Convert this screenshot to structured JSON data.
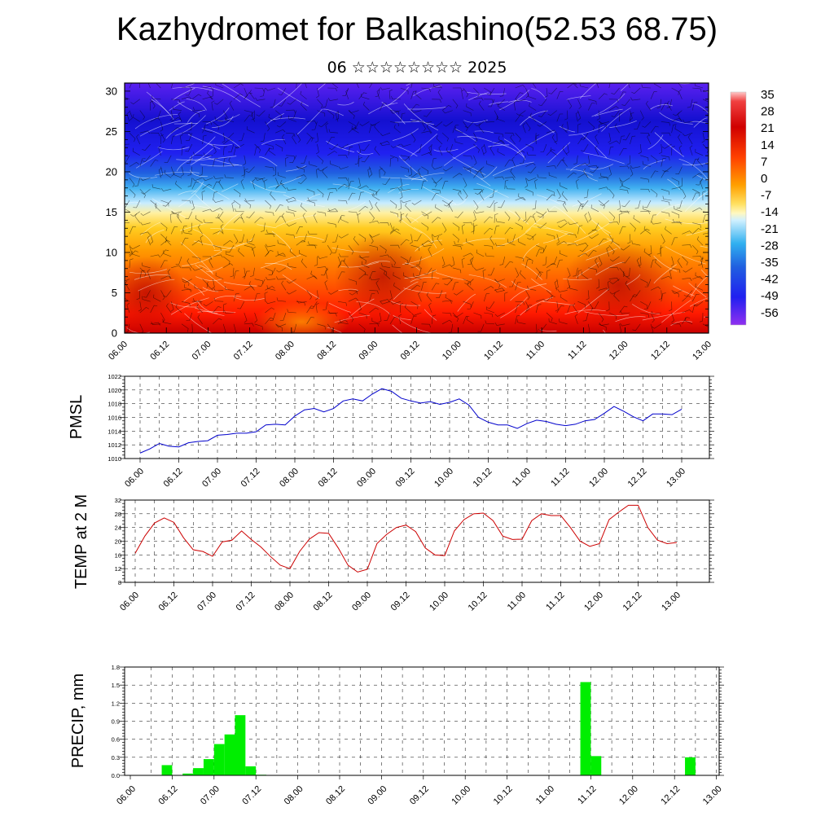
{
  "header": {
    "title": "Kazhydromet for Balkashino(52.53 68.75)",
    "subtitle": "06 ☆☆☆☆☆☆☆☆ 2025"
  },
  "chart_data": [
    {
      "type": "heatmap",
      "name": "vertical-cross-section",
      "x_tick_labels": [
        "06.00",
        "06.12",
        "07.00",
        "07.12",
        "08.00",
        "08.12",
        "09.00",
        "09.12",
        "10.00",
        "10.12",
        "11.00",
        "11.12",
        "12.00",
        "12.12",
        "13.00"
      ],
      "ylim": [
        0,
        31
      ],
      "y_ticks": [
        0,
        5,
        10,
        15,
        20,
        25,
        30
      ],
      "colorbar": {
        "labels": [
          "35",
          "28",
          "21",
          "14",
          "7",
          "0",
          "-7",
          "-14",
          "-21",
          "-28",
          "-35",
          "-42",
          "-49",
          "-56"
        ],
        "range": [
          -60,
          38
        ]
      },
      "overlay": "wind barbs (black) and streamlines (white)"
    },
    {
      "type": "line",
      "ylabel": "PMSL",
      "ylim": [
        1010,
        1022
      ],
      "y_ticks": [
        1010,
        1012,
        1014,
        1016,
        1018,
        1020,
        1022
      ],
      "x_tick_labels": [
        "06.00",
        "06.12",
        "07.00",
        "07.12",
        "08.00",
        "08.12",
        "09.00",
        "09.12",
        "10.00",
        "10.12",
        "11.00",
        "11.12",
        "12.00",
        "12.12",
        "13.00"
      ],
      "color": "#0000cc",
      "values": [
        1010.8,
        1011.4,
        1012.2,
        1011.8,
        1011.7,
        1012.3,
        1012.5,
        1012.6,
        1013.4,
        1013.5,
        1013.7,
        1013.7,
        1013.9,
        1014.9,
        1015.0,
        1014.9,
        1016.2,
        1017.1,
        1017.3,
        1016.8,
        1017.3,
        1018.4,
        1018.7,
        1018.4,
        1019.4,
        1020.2,
        1019.8,
        1018.8,
        1018.4,
        1018.1,
        1018.3,
        1017.9,
        1018.2,
        1018.7,
        1017.8,
        1016.0,
        1015.3,
        1014.9,
        1014.9,
        1014.4,
        1015.1,
        1015.6,
        1015.4,
        1015.0,
        1014.8,
        1015.0,
        1015.5,
        1015.7,
        1016.6,
        1017.6,
        1016.9,
        1016.1,
        1015.5,
        1016.5,
        1016.5,
        1016.4,
        1017.2
      ]
    },
    {
      "type": "line",
      "ylabel": "TEMP at 2 M",
      "ylim": [
        8,
        32
      ],
      "y_ticks": [
        8,
        12,
        16,
        20,
        24,
        28,
        32
      ],
      "x_tick_labels": [
        "06.00",
        "06.12",
        "07.00",
        "07.12",
        "08.00",
        "08.12",
        "09.00",
        "09.12",
        "10.00",
        "10.12",
        "11.00",
        "11.12",
        "12.00",
        "12.12",
        "13.00"
      ],
      "color": "#cc0000",
      "values": [
        16.5,
        21.5,
        25.3,
        26.8,
        25.5,
        21.0,
        17.5,
        17.0,
        15.6,
        19.8,
        20.3,
        23.0,
        20.5,
        18.3,
        15.5,
        13.0,
        12.0,
        17.0,
        20.6,
        22.5,
        22.3,
        18.0,
        13.0,
        11.0,
        11.8,
        19.3,
        22.0,
        24.0,
        24.7,
        22.8,
        18.0,
        16.0,
        15.8,
        23.0,
        26.3,
        28.0,
        28.2,
        26.0,
        21.5,
        20.5,
        20.6,
        26.0,
        28.0,
        27.5,
        27.5,
        24.0,
        20.0,
        18.5,
        19.3,
        26.3,
        28.5,
        30.5,
        30.5,
        24.0,
        20.3,
        19.3,
        19.6
      ]
    },
    {
      "type": "bar",
      "ylabel": "PRECIP, mm",
      "ylim": [
        0,
        1.8
      ],
      "y_tick_labels": [
        "0.0",
        "0.3",
        "0.6",
        "0.9",
        "1.2",
        "1.5",
        "1.8"
      ],
      "x_tick_labels": [
        "06.00",
        "06.12",
        "07.00",
        "07.12",
        "08.00",
        "08.12",
        "09.00",
        "09.12",
        "10.00",
        "10.12",
        "11.00",
        "11.12",
        "12.00",
        "12.12",
        "13.00"
      ],
      "color": "#00ee00",
      "values": [
        0,
        0,
        0,
        0.17,
        0,
        0.03,
        0.12,
        0.27,
        0.52,
        0.68,
        1.0,
        0.15,
        0.01,
        0,
        0,
        0,
        0,
        0,
        0,
        0,
        0,
        0,
        0,
        0,
        0,
        0,
        0,
        0,
        0,
        0,
        0,
        0,
        0,
        0,
        0,
        0,
        0,
        0,
        0,
        0,
        0,
        0,
        0,
        1.55,
        0.32,
        0,
        0,
        0,
        0,
        0,
        0,
        0,
        0,
        0.3,
        0,
        0
      ]
    }
  ]
}
